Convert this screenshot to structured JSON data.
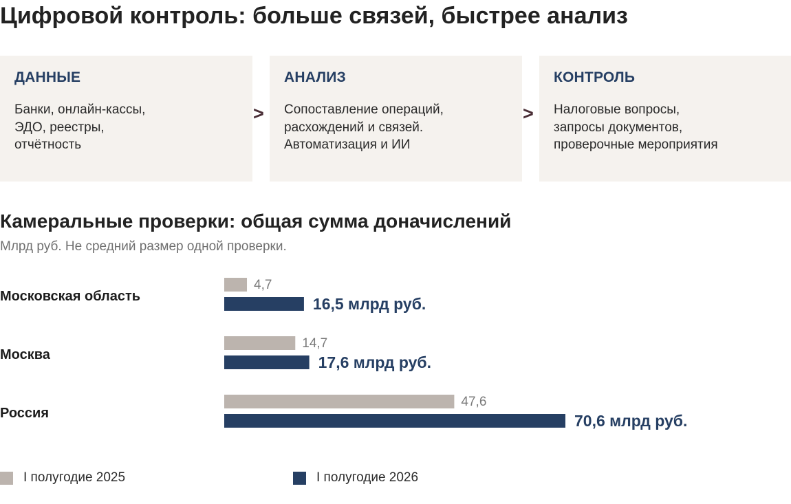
{
  "header": {
    "title": "Цифровой контроль: больше связей, быстрее анализ"
  },
  "flow": {
    "arrow_glyph": ">",
    "steps": [
      {
        "title": "ДАННЫЕ",
        "text": "Банки, онлайн-кассы,\nЭДО, реестры,\nотчётность"
      },
      {
        "title": "АНАЛИЗ",
        "text": "Сопоставление операций,\nрасхождений и связей.\nАвтоматизация и ИИ"
      },
      {
        "title": "КОНТРОЛЬ",
        "text": "Налоговые вопросы,\nзапросы документов,\nпроверочные мероприятия"
      }
    ]
  },
  "colors": {
    "series_2025": "#bcb4ae",
    "series_2026": "#263f63",
    "card_background": "#f5f2ee",
    "arrow": "#4a2e36"
  },
  "chart_data": {
    "type": "bar",
    "orientation": "horizontal",
    "title": "Камеральные проверки: общая сумма доначислений",
    "subtitle": "Млрд руб. Не средний размер одной проверки.",
    "categories": [
      "Московская область",
      "Москва",
      "Россия"
    ],
    "series": [
      {
        "name": "I полугодие 2025",
        "values": [
          4.7,
          14.7,
          47.6
        ],
        "labels": [
          "4,7",
          "14,7",
          "47,6"
        ]
      },
      {
        "name": "I полугодие 2026",
        "values": [
          16.5,
          17.6,
          70.6
        ],
        "labels": [
          "16,5 млрд руб.",
          "17,6 млрд руб.",
          "70,6 млрд руб."
        ]
      }
    ],
    "xlim": [
      0,
      70.6
    ],
    "grid": false,
    "legend_position": "bottom"
  }
}
